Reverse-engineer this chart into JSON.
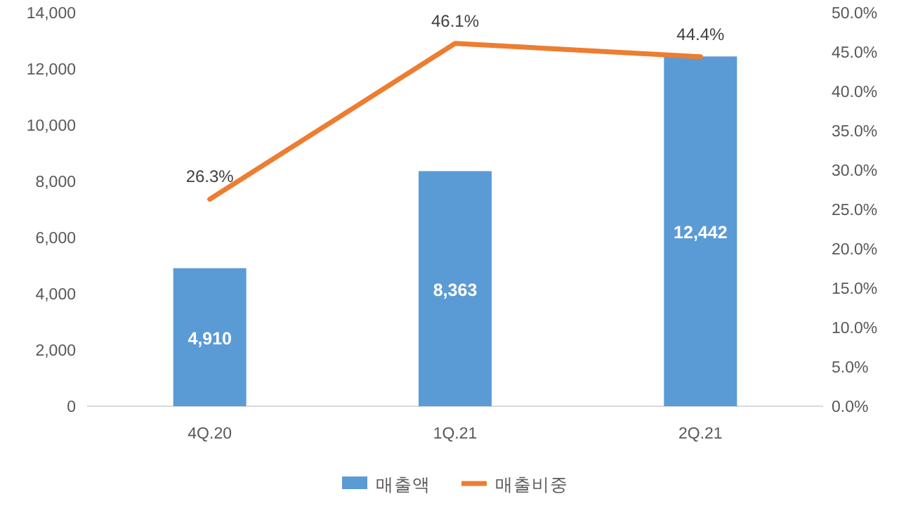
{
  "chart_data": {
    "type": "bar",
    "categories": [
      "4Q.20",
      "1Q.21",
      "2Q.21"
    ],
    "series": [
      {
        "name": "매출액",
        "color": "#5b9bd5",
        "values": [
          4910,
          8363,
          12442
        ],
        "value_labels": [
          "4,910",
          "8,363",
          "12,442"
        ]
      },
      {
        "name": "매출비중",
        "type": "line",
        "axis": "y2",
        "color": "#ed7d31",
        "values": [
          26.3,
          46.1,
          44.4
        ],
        "value_labels": [
          "26.3%",
          "46.1%",
          "44.4%"
        ]
      }
    ],
    "ylim": [
      0,
      14000
    ],
    "yticks": [
      {
        "value": 0,
        "label": "0"
      },
      {
        "value": 2000,
        "label": "2,000"
      },
      {
        "value": 4000,
        "label": "4,000"
      },
      {
        "value": 6000,
        "label": "6,000"
      },
      {
        "value": 8000,
        "label": "8,000"
      },
      {
        "value": 10000,
        "label": "10,000"
      },
      {
        "value": 12000,
        "label": "12,000"
      },
      {
        "value": 14000,
        "label": "14,000"
      }
    ],
    "y2lim": [
      0,
      50
    ],
    "y2ticks": [
      {
        "value": 0,
        "label": "0.0%"
      },
      {
        "value": 5,
        "label": "5.0%"
      },
      {
        "value": 10,
        "label": "10.0%"
      },
      {
        "value": 15,
        "label": "15.0%"
      },
      {
        "value": 20,
        "label": "20.0%"
      },
      {
        "value": 25,
        "label": "25.0%"
      },
      {
        "value": 30,
        "label": "30.0%"
      },
      {
        "value": 35,
        "label": "35.0%"
      },
      {
        "value": 40,
        "label": "40.0%"
      },
      {
        "value": 45,
        "label": "45.0%"
      },
      {
        "value": 50,
        "label": "50.0%"
      }
    ],
    "legend": "bottom"
  }
}
